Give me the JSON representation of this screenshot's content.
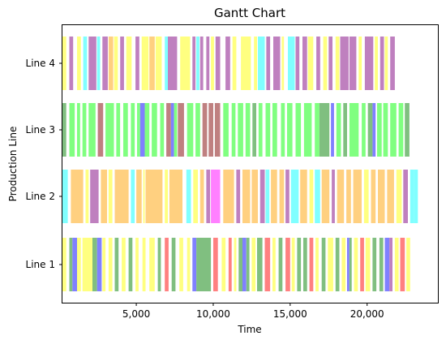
{
  "chart_data": {
    "type": "gantt",
    "title": "Gantt Chart",
    "xlabel": "Time",
    "ylabel": "Production Line",
    "xlim": [
      200,
      24600
    ],
    "x_ticks": [
      {
        "value": 5000,
        "label": "5,000"
      },
      {
        "value": 10000,
        "label": "10,000"
      },
      {
        "value": 15000,
        "label": "15,000"
      },
      {
        "value": 20000,
        "label": "20,000"
      }
    ],
    "categories": [
      "Line 1",
      "Line 2",
      "Line 3",
      "Line 4"
    ],
    "colors": {
      "yellow": "#ffff80",
      "orange": "#ffd080",
      "purple": "#bf80bf",
      "cyan": "#80ffff",
      "green": "#80ff80",
      "darkgreen": "#80bf80",
      "blue": "#8080ff",
      "red": "#ff8080",
      "magenta": "#ff80ff",
      "brown": "#bf8080"
    },
    "tasks": {
      "Line 4": [
        [
          200,
          450,
          "yellow"
        ],
        [
          650,
          900,
          "purple"
        ],
        [
          1150,
          1400,
          "yellow"
        ],
        [
          1550,
          1800,
          "cyan"
        ],
        [
          1900,
          2400,
          "purple"
        ],
        [
          2450,
          2650,
          "cyan"
        ],
        [
          2800,
          3150,
          "purple"
        ],
        [
          3200,
          3500,
          "orange"
        ],
        [
          3550,
          3800,
          "yellow"
        ],
        [
          3950,
          4200,
          "purple"
        ],
        [
          4350,
          4700,
          "yellow"
        ],
        [
          4950,
          5200,
          "purple"
        ],
        [
          5350,
          5800,
          "yellow"
        ],
        [
          5850,
          6200,
          "orange"
        ],
        [
          6250,
          6650,
          "yellow"
        ],
        [
          6850,
          7050,
          "cyan"
        ],
        [
          7050,
          7650,
          "purple"
        ],
        [
          7850,
          8500,
          "yellow"
        ],
        [
          8650,
          8850,
          "purple"
        ],
        [
          8900,
          9100,
          "cyan"
        ],
        [
          9150,
          9350,
          "purple"
        ],
        [
          9550,
          9750,
          "purple"
        ],
        [
          9850,
          10050,
          "yellow"
        ],
        [
          10150,
          10450,
          "purple"
        ],
        [
          10800,
          11100,
          "purple"
        ],
        [
          11250,
          11500,
          "yellow"
        ],
        [
          11800,
          12450,
          "yellow"
        ],
        [
          12650,
          12850,
          "yellow"
        ],
        [
          12900,
          13350,
          "cyan"
        ],
        [
          13450,
          13700,
          "purple"
        ],
        [
          13900,
          14350,
          "purple"
        ],
        [
          14450,
          14600,
          "yellow"
        ],
        [
          14850,
          15300,
          "cyan"
        ],
        [
          15350,
          15600,
          "purple"
        ],
        [
          15800,
          16100,
          "purple"
        ],
        [
          16150,
          16500,
          "yellow"
        ],
        [
          16700,
          16950,
          "purple"
        ],
        [
          17150,
          17400,
          "yellow"
        ],
        [
          17500,
          17750,
          "purple"
        ],
        [
          17950,
          18200,
          "yellow"
        ],
        [
          18250,
          18800,
          "purple"
        ],
        [
          18850,
          19300,
          "purple"
        ],
        [
          19450,
          19650,
          "yellow"
        ],
        [
          19850,
          20400,
          "purple"
        ],
        [
          20500,
          20700,
          "yellow"
        ],
        [
          20850,
          21100,
          "purple"
        ],
        [
          21150,
          21350,
          "yellow"
        ],
        [
          21500,
          21800,
          "purple"
        ]
      ],
      "Line 3": [
        [
          200,
          450,
          "darkgreen"
        ],
        [
          650,
          1000,
          "green"
        ],
        [
          1150,
          1350,
          "green"
        ],
        [
          1500,
          1750,
          "green"
        ],
        [
          1900,
          2350,
          "green"
        ],
        [
          2500,
          2850,
          "brown"
        ],
        [
          3000,
          3550,
          "green"
        ],
        [
          3700,
          3950,
          "green"
        ],
        [
          4150,
          4450,
          "green"
        ],
        [
          4650,
          4900,
          "green"
        ],
        [
          5050,
          5250,
          "green"
        ],
        [
          5250,
          5550,
          "blue"
        ],
        [
          5550,
          5850,
          "green"
        ],
        [
          6000,
          6350,
          "green"
        ],
        [
          6550,
          6800,
          "green"
        ],
        [
          6950,
          7250,
          "brown"
        ],
        [
          7250,
          7450,
          "blue"
        ],
        [
          7450,
          7650,
          "green"
        ],
        [
          7700,
          8100,
          "brown"
        ],
        [
          8300,
          8700,
          "green"
        ],
        [
          8850,
          9150,
          "green"
        ],
        [
          9300,
          9600,
          "brown"
        ],
        [
          9700,
          10000,
          "brown"
        ],
        [
          10100,
          10450,
          "brown"
        ],
        [
          10650,
          11000,
          "green"
        ],
        [
          11200,
          11450,
          "green"
        ],
        [
          11600,
          11950,
          "green"
        ],
        [
          12100,
          12400,
          "green"
        ],
        [
          12550,
          12800,
          "darkgreen"
        ],
        [
          12950,
          13200,
          "green"
        ],
        [
          13400,
          13700,
          "green"
        ],
        [
          13850,
          14150,
          "green"
        ],
        [
          14400,
          14650,
          "green"
        ],
        [
          14800,
          15150,
          "green"
        ],
        [
          15350,
          15700,
          "green"
        ],
        [
          15900,
          16400,
          "green"
        ],
        [
          16600,
          16900,
          "green"
        ],
        [
          16900,
          17550,
          "darkgreen"
        ],
        [
          17650,
          17850,
          "blue"
        ],
        [
          18000,
          18300,
          "green"
        ],
        [
          18450,
          18700,
          "darkgreen"
        ],
        [
          18850,
          19450,
          "green"
        ],
        [
          19650,
          19900,
          "green"
        ],
        [
          20050,
          20350,
          "darkgreen"
        ],
        [
          20350,
          20550,
          "blue"
        ],
        [
          20650,
          20950,
          "green"
        ],
        [
          21050,
          21350,
          "green"
        ],
        [
          21500,
          21900,
          "green"
        ],
        [
          22050,
          22350,
          "green"
        ],
        [
          22450,
          22750,
          "darkgreen"
        ]
      ],
      "Line 2": [
        [
          200,
          550,
          "cyan"
        ],
        [
          750,
          1550,
          "orange"
        ],
        [
          1700,
          1900,
          "yellow"
        ],
        [
          2000,
          2550,
          "purple"
        ],
        [
          2700,
          3100,
          "orange"
        ],
        [
          3200,
          3450,
          "yellow"
        ],
        [
          3600,
          4500,
          "orange"
        ],
        [
          4650,
          4900,
          "cyan"
        ],
        [
          5000,
          5350,
          "orange"
        ],
        [
          5450,
          5550,
          "yellow"
        ],
        [
          5600,
          6700,
          "orange"
        ],
        [
          6850,
          7050,
          "yellow"
        ],
        [
          7150,
          8000,
          "orange"
        ],
        [
          8250,
          8550,
          "cyan"
        ],
        [
          8700,
          9000,
          "yellow"
        ],
        [
          9150,
          9400,
          "orange"
        ],
        [
          9550,
          9800,
          "purple"
        ],
        [
          9850,
          10450,
          "magenta"
        ],
        [
          10650,
          11350,
          "orange"
        ],
        [
          11500,
          11750,
          "purple"
        ],
        [
          11900,
          12400,
          "orange"
        ],
        [
          12500,
          12900,
          "orange"
        ],
        [
          13050,
          13350,
          "purple"
        ],
        [
          13400,
          13650,
          "cyan"
        ],
        [
          13750,
          14150,
          "orange"
        ],
        [
          14300,
          14600,
          "orange"
        ],
        [
          14700,
          14950,
          "purple"
        ],
        [
          15050,
          15550,
          "cyan"
        ],
        [
          15650,
          16100,
          "orange"
        ],
        [
          16250,
          16500,
          "yellow"
        ],
        [
          16600,
          16950,
          "cyan"
        ],
        [
          17050,
          17550,
          "orange"
        ],
        [
          17700,
          17900,
          "purple"
        ],
        [
          18050,
          18500,
          "orange"
        ],
        [
          18650,
          18950,
          "orange"
        ],
        [
          19100,
          19650,
          "orange"
        ],
        [
          19800,
          20100,
          "yellow"
        ],
        [
          20250,
          20550,
          "orange"
        ],
        [
          20700,
          21150,
          "orange"
        ],
        [
          21300,
          21750,
          "orange"
        ],
        [
          21900,
          22250,
          "yellow"
        ],
        [
          22350,
          22650,
          "purple"
        ],
        [
          22800,
          23050,
          "cyan"
        ],
        [
          23050,
          23300,
          "cyan"
        ]
      ],
      "Line 1": [
        [
          200,
          450,
          "yellow"
        ],
        [
          650,
          850,
          "darkgreen"
        ],
        [
          850,
          1150,
          "blue"
        ],
        [
          1150,
          1400,
          "yellow"
        ],
        [
          1500,
          2150,
          "yellow"
        ],
        [
          2150,
          2450,
          "darkgreen"
        ],
        [
          2450,
          2750,
          "blue"
        ],
        [
          2800,
          3000,
          "yellow"
        ],
        [
          3200,
          3450,
          "yellow"
        ],
        [
          3600,
          3850,
          "darkgreen"
        ],
        [
          4050,
          4300,
          "yellow"
        ],
        [
          4500,
          4750,
          "darkgreen"
        ],
        [
          4950,
          5150,
          "yellow"
        ],
        [
          5400,
          5600,
          "yellow"
        ],
        [
          5850,
          6200,
          "yellow"
        ],
        [
          6400,
          6600,
          "darkgreen"
        ],
        [
          6850,
          7100,
          "red"
        ],
        [
          7300,
          7550,
          "darkgreen"
        ],
        [
          7800,
          8050,
          "yellow"
        ],
        [
          8300,
          8500,
          "yellow"
        ],
        [
          8650,
          8900,
          "blue"
        ],
        [
          8900,
          9850,
          "darkgreen"
        ],
        [
          10000,
          10300,
          "red"
        ],
        [
          10550,
          10800,
          "yellow"
        ],
        [
          11000,
          11200,
          "red"
        ],
        [
          11350,
          11500,
          "yellow"
        ],
        [
          11650,
          11900,
          "darkgreen"
        ],
        [
          11900,
          12150,
          "blue"
        ],
        [
          12150,
          12350,
          "darkgreen"
        ],
        [
          12500,
          12750,
          "yellow"
        ],
        [
          12850,
          13200,
          "darkgreen"
        ],
        [
          13350,
          13700,
          "red"
        ],
        [
          13850,
          14050,
          "yellow"
        ],
        [
          14250,
          14500,
          "darkgreen"
        ],
        [
          14700,
          15000,
          "red"
        ],
        [
          15100,
          15300,
          "yellow"
        ],
        [
          15450,
          15700,
          "darkgreen"
        ],
        [
          15850,
          16100,
          "darkgreen"
        ],
        [
          16250,
          16500,
          "red"
        ],
        [
          16650,
          16850,
          "yellow"
        ],
        [
          17050,
          17300,
          "darkgreen"
        ],
        [
          17450,
          17800,
          "yellow"
        ],
        [
          17950,
          18200,
          "darkgreen"
        ],
        [
          18350,
          18600,
          "yellow"
        ],
        [
          18700,
          18850,
          "blue"
        ],
        [
          18850,
          19000,
          "darkgreen"
        ],
        [
          19150,
          19400,
          "yellow"
        ],
        [
          19550,
          19800,
          "red"
        ],
        [
          19900,
          20200,
          "yellow"
        ],
        [
          20350,
          20600,
          "darkgreen"
        ],
        [
          20800,
          21050,
          "darkgreen"
        ],
        [
          21150,
          21450,
          "blue"
        ],
        [
          21450,
          21650,
          "purple"
        ],
        [
          21800,
          22050,
          "yellow"
        ],
        [
          22150,
          22450,
          "red"
        ],
        [
          22550,
          22800,
          "yellow"
        ]
      ]
    }
  }
}
